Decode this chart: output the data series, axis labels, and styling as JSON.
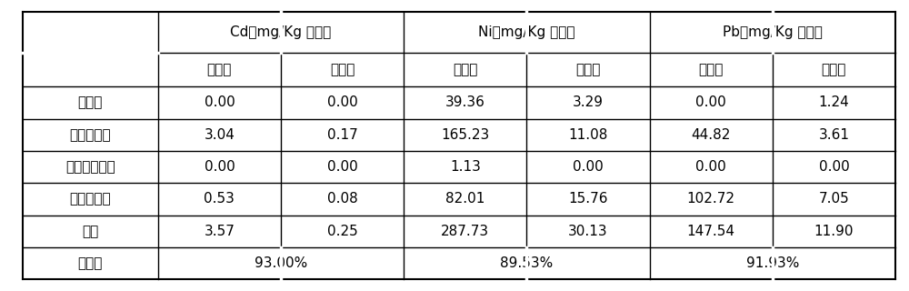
{
  "header_row1_texts": [
    "Cd（mg/Kg 土壤）",
    "Ni（mg/Kg 土壤）",
    "Pb（mg/Kg 土壤）"
  ],
  "header_row2_texts": [
    "治理前",
    "治理后",
    "治理前",
    "治理后",
    "治理前",
    "治理后"
  ],
  "rows": [
    [
      "水溶态",
      "0.00",
      "0.00",
      "39.36",
      "3.29",
      "0.00",
      "1.24"
    ],
    [
      "离子交换态",
      "3.04",
      "0.17",
      "165.23",
      "11.08",
      "44.82",
      "3.61"
    ],
    [
      "碳酸盐结合态",
      "0.00",
      "0.00",
      "1.13",
      "0.00",
      "0.00",
      "0.00"
    ],
    [
      "铁锰氧化态",
      "0.53",
      "0.08",
      "82.01",
      "15.76",
      "102.72",
      "7.05"
    ],
    [
      "总量",
      "3.57",
      "0.25",
      "287.73",
      "30.13",
      "147.54",
      "11.90"
    ],
    [
      "去除率",
      "93.00%",
      "89.53%",
      "91.93%"
    ]
  ],
  "bg_color": "#ffffff",
  "border_color": "#000000",
  "text_color": "#000000",
  "fontsize": 11,
  "fig_width": 10.0,
  "fig_height": 3.2
}
